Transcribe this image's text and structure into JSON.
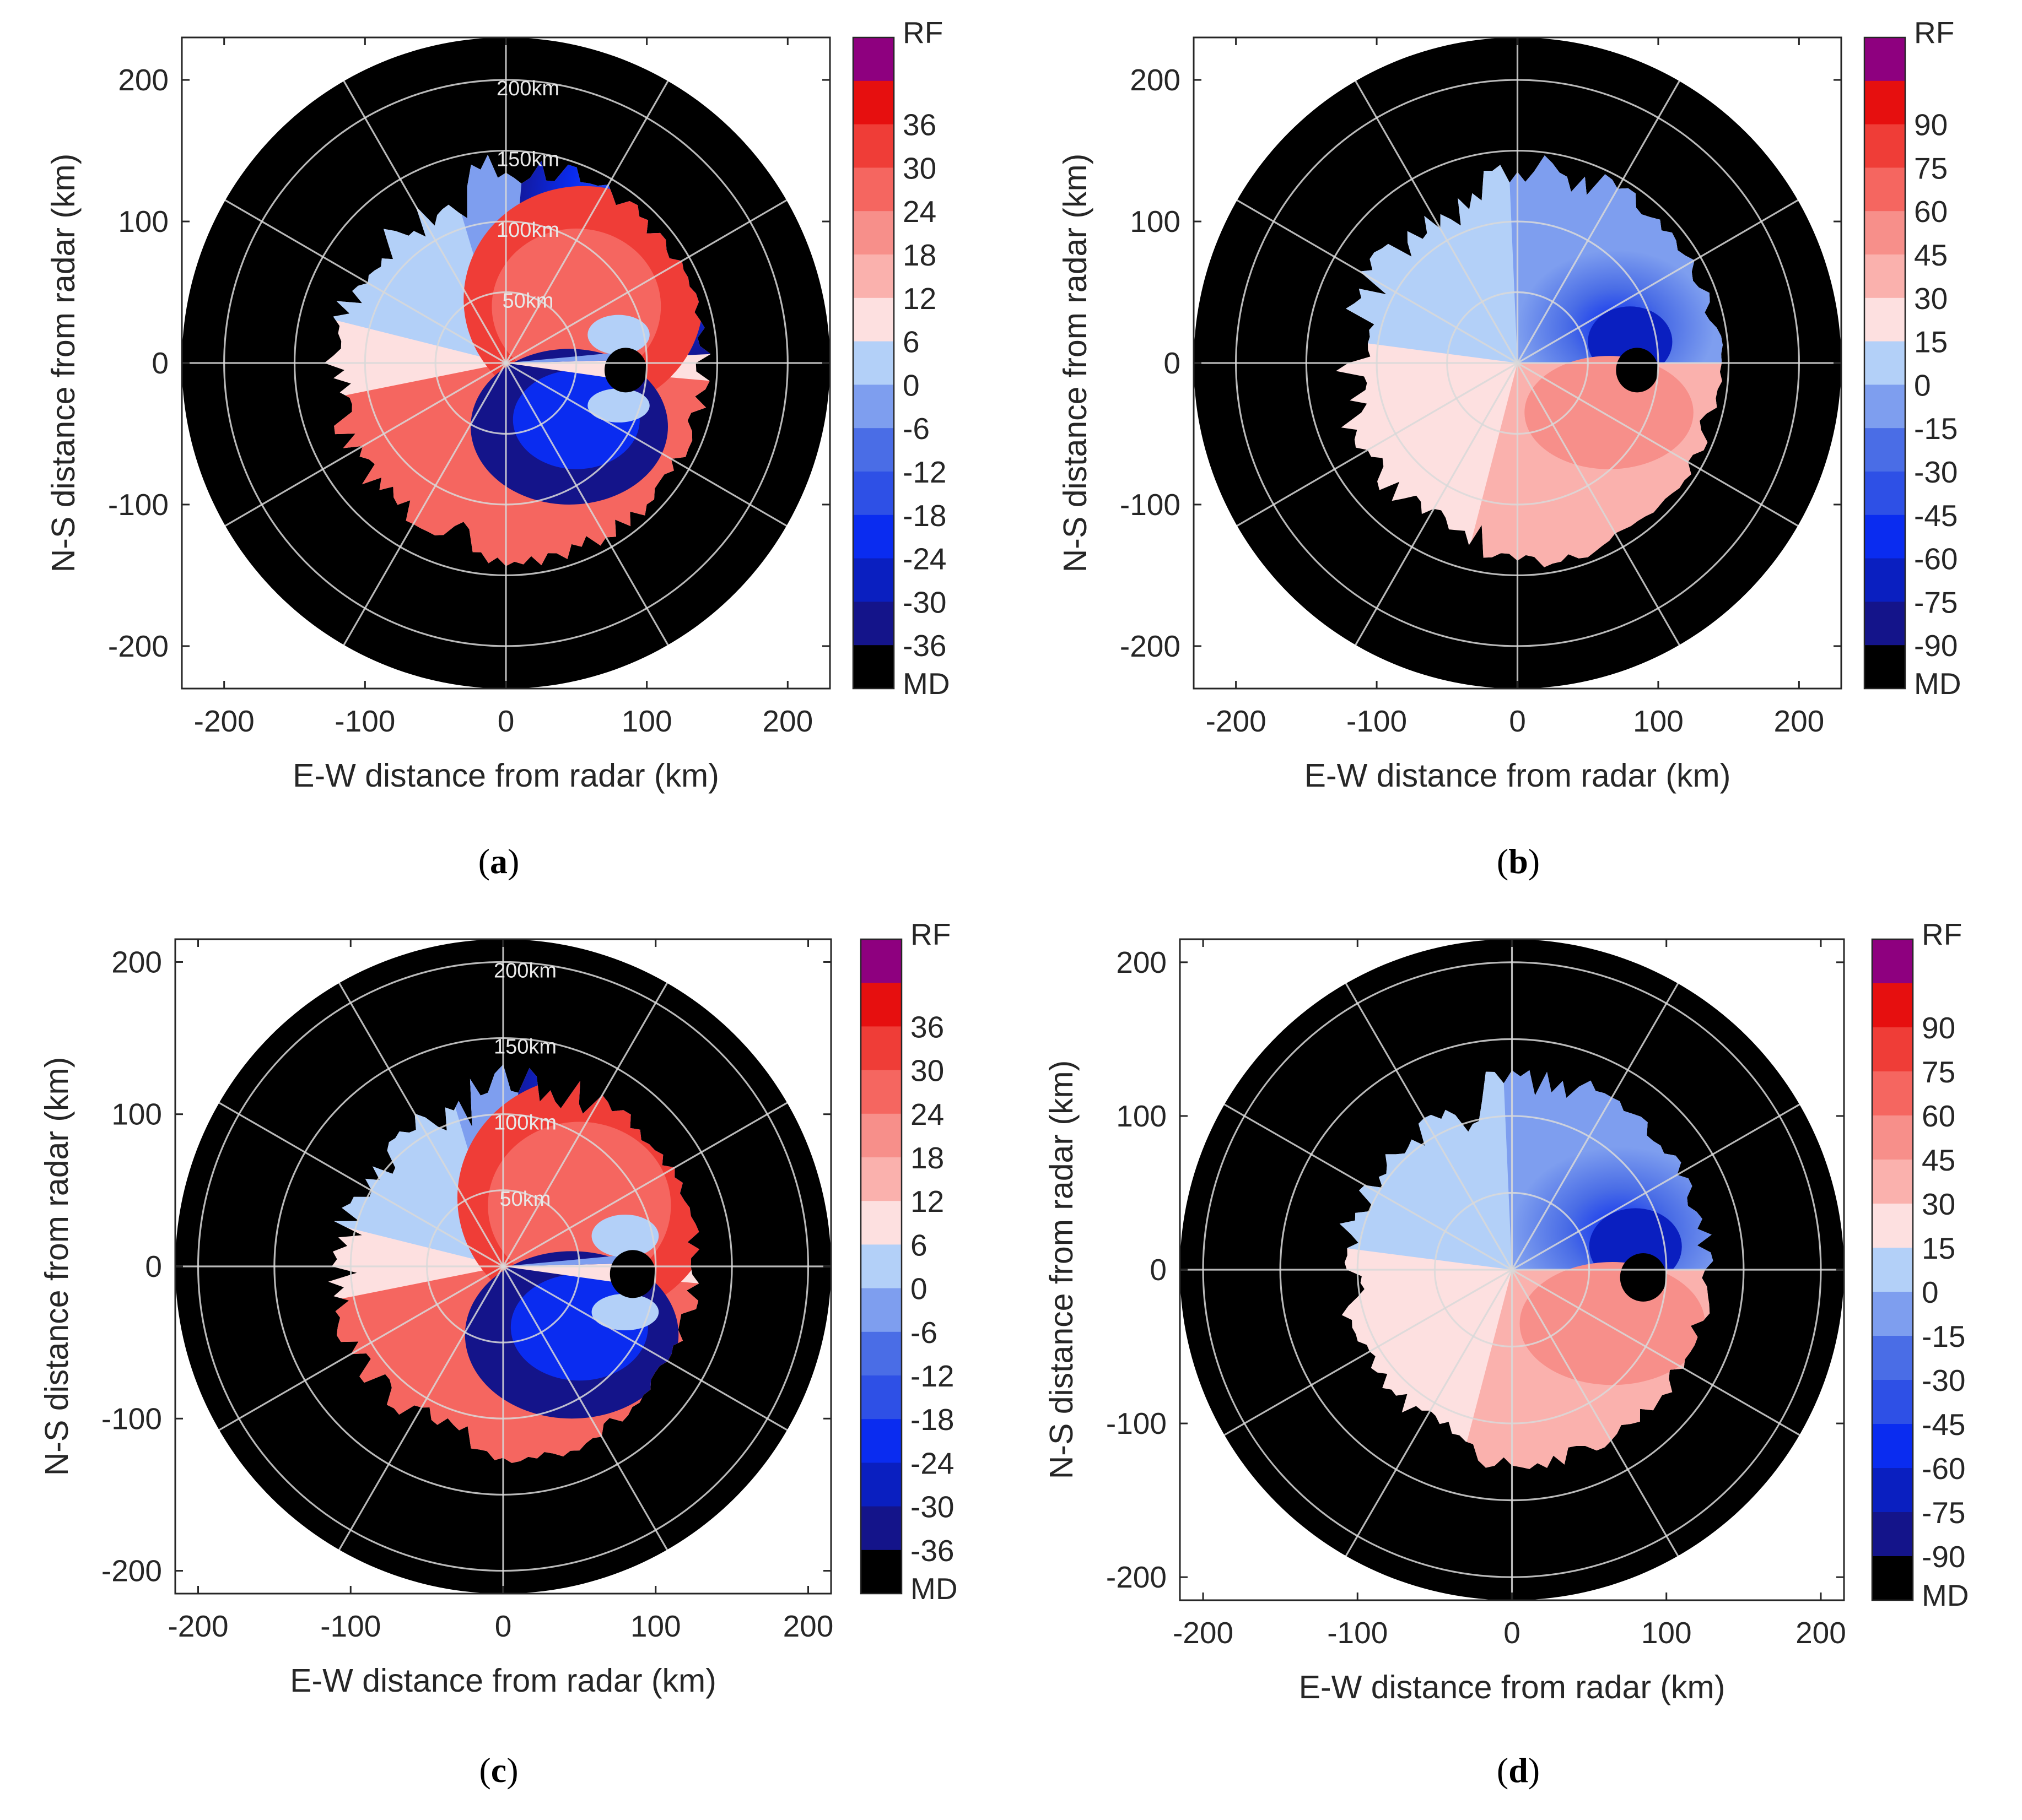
{
  "colors": {
    "md": "#000000",
    "rf": "#8e007f",
    "grid": "#d9d9d9",
    "velocity_scale": [
      "#1c0a58",
      "#14148a",
      "#0a1fc0",
      "#0a2cf0",
      "#2e50e6",
      "#4a6de6",
      "#7e9eef",
      "#b3d0f8",
      "#fde0e0",
      "#fab1ad",
      "#f78f8a",
      "#f56660",
      "#ef3d37",
      "#e60f0f"
    ]
  },
  "chart_data": [
    {
      "panel": "a",
      "type": "heatmap",
      "caption_letter": "a",
      "xlabel": "E-W distance from radar (km)",
      "ylabel": "N-S distance from radar (km)",
      "xlim": [
        -230,
        230
      ],
      "ylim": [
        -230,
        230
      ],
      "xticks": [
        "-200",
        "-100",
        "0",
        "100",
        "200"
      ],
      "yticks": [
        "200",
        "100",
        "0",
        "-100",
        "-200"
      ],
      "ring_labels": [
        "200km",
        "150km",
        "100km",
        "50km"
      ],
      "colorbar_labels": [
        "RF",
        "36",
        "30",
        "24",
        "18",
        "12",
        "6",
        "0",
        "-6",
        "-12",
        "-18",
        "-24",
        "-30",
        "-36",
        "MD"
      ],
      "field": "ambiguous_velocity",
      "radar_range_km": 230,
      "echo_range_km": 145,
      "vortex_center_km": [
        85,
        -5
      ],
      "vortex_eye_radius_km": 15
    },
    {
      "panel": "b",
      "type": "heatmap",
      "caption_letter": "b",
      "xlabel": "E-W distance from radar (km)",
      "ylabel": "N-S distance from radar (km)",
      "xlim": [
        -230,
        230
      ],
      "ylim": [
        -230,
        230
      ],
      "xticks": [
        "-200",
        "-100",
        "0",
        "100",
        "200"
      ],
      "yticks": [
        "200",
        "100",
        "0",
        "-100",
        "-200"
      ],
      "ring_labels": [],
      "colorbar_labels": [
        "RF",
        "90",
        "75",
        "60",
        "45",
        "30",
        "15",
        "0",
        "-15",
        "-30",
        "-45",
        "-60",
        "-75",
        "-90",
        "MD"
      ],
      "field": "dealiased_velocity",
      "radar_range_km": 230,
      "echo_range_km": 145,
      "vortex_center_km": [
        85,
        -5
      ],
      "vortex_eye_radius_km": 15
    },
    {
      "panel": "c",
      "type": "heatmap",
      "caption_letter": "c",
      "xlabel": "E-W distance from radar (km)",
      "ylabel": "N-S distance from radar (km)",
      "xlim": [
        -215,
        215
      ],
      "ylim": [
        -215,
        215
      ],
      "xticks": [
        "-200",
        "-100",
        "0",
        "100",
        "200"
      ],
      "yticks": [
        "200",
        "100",
        "0",
        "-100",
        "-200"
      ],
      "ring_labels": [
        "200km",
        "150km",
        "100km",
        "50km"
      ],
      "colorbar_labels": [
        "RF",
        "36",
        "30",
        "24",
        "18",
        "12",
        "6",
        "0",
        "-6",
        "-12",
        "-18",
        "-24",
        "-30",
        "-36",
        "MD"
      ],
      "field": "ambiguous_velocity",
      "radar_range_km": 215,
      "echo_range_km": 130,
      "vortex_center_km": [
        85,
        -5
      ],
      "vortex_eye_radius_km": 15
    },
    {
      "panel": "d",
      "type": "heatmap",
      "caption_letter": "d",
      "xlabel": "E-W distance from radar (km)",
      "ylabel": "N-S distance from radar (km)",
      "xlim": [
        -215,
        215
      ],
      "ylim": [
        -215,
        215
      ],
      "xticks": [
        "-200",
        "-100",
        "0",
        "100",
        "200"
      ],
      "yticks": [
        "200",
        "100",
        "0",
        "-100",
        "-200"
      ],
      "ring_labels": [],
      "colorbar_labels": [
        "RF",
        "90",
        "75",
        "60",
        "45",
        "30",
        "15",
        "0",
        "-15",
        "-30",
        "-45",
        "-60",
        "-75",
        "-90",
        "MD"
      ],
      "field": "dealiased_velocity",
      "radar_range_km": 215,
      "echo_range_km": 130,
      "vortex_center_km": [
        85,
        -5
      ],
      "vortex_eye_radius_km": 15
    }
  ]
}
